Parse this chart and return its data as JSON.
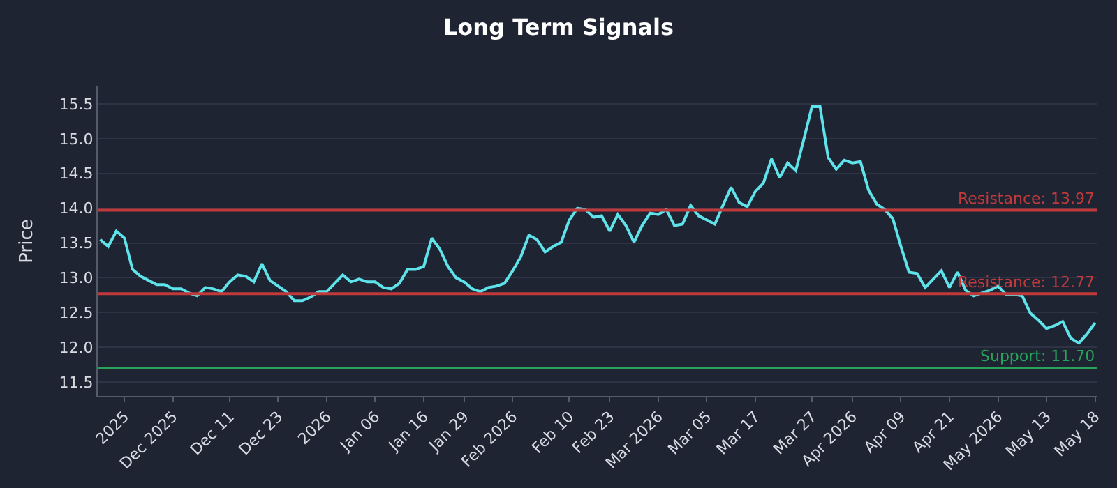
{
  "chart_data": {
    "type": "line",
    "title": "Long Term Signals",
    "ylabel": "Price",
    "categories": [
      null,
      null,
      null,
      "2025",
      null,
      null,
      null,
      null,
      null,
      "Dec 2025",
      null,
      null,
      null,
      null,
      null,
      null,
      "Dec 11",
      null,
      null,
      null,
      null,
      null,
      "Dec 23",
      null,
      null,
      null,
      null,
      null,
      "2026",
      null,
      null,
      null,
      null,
      null,
      "Jan 06",
      null,
      null,
      null,
      null,
      null,
      "Jan 16",
      null,
      null,
      null,
      null,
      "Jan 29",
      null,
      null,
      null,
      null,
      null,
      "Feb 2026",
      null,
      null,
      null,
      null,
      null,
      null,
      "Feb 10",
      null,
      null,
      null,
      null,
      "Feb 23",
      null,
      null,
      null,
      null,
      null,
      "Mar 2026",
      null,
      null,
      null,
      null,
      null,
      "Mar 05",
      null,
      null,
      null,
      null,
      null,
      "Mar 17",
      null,
      null,
      null,
      null,
      null,
      null,
      "Mar 27",
      null,
      null,
      null,
      null,
      "Apr 2026",
      null,
      null,
      null,
      null,
      null,
      "Apr 09",
      null,
      null,
      null,
      null,
      null,
      "Apr 21",
      null,
      null,
      null,
      null,
      null,
      "May 2026",
      null,
      null,
      null,
      null,
      null,
      "May 13",
      null,
      null,
      null,
      null,
      null,
      "May 18"
    ],
    "series": [
      {
        "color": "#5fe3ea",
        "values": [
          13.55,
          13.45,
          13.67,
          13.57,
          13.12,
          13.02,
          12.96,
          12.9,
          12.9,
          12.84,
          12.84,
          12.78,
          12.74,
          12.86,
          12.84,
          12.8,
          12.94,
          13.04,
          13.02,
          12.94,
          13.2,
          12.96,
          12.88,
          12.8,
          12.67,
          12.67,
          12.72,
          12.8,
          12.8,
          12.92,
          13.04,
          12.94,
          12.98,
          12.94,
          12.94,
          12.86,
          12.84,
          12.92,
          13.12,
          13.12,
          13.16,
          13.57,
          13.41,
          13.16,
          13.0,
          12.94,
          12.84,
          12.8,
          12.86,
          12.88,
          12.92,
          13.1,
          13.3,
          13.61,
          13.55,
          13.37,
          13.45,
          13.51,
          13.83,
          14.0,
          13.98,
          13.87,
          13.89,
          13.67,
          13.91,
          13.75,
          13.51,
          13.75,
          13.93,
          13.91,
          13.98,
          13.75,
          13.77,
          14.04,
          13.89,
          13.83,
          13.77,
          14.04,
          14.3,
          14.08,
          14.02,
          14.24,
          14.36,
          14.71,
          14.44,
          14.65,
          14.54,
          14.99,
          15.46,
          15.46,
          14.73,
          14.56,
          14.69,
          14.65,
          14.67,
          14.26,
          14.06,
          13.98,
          13.85,
          13.45,
          13.08,
          13.06,
          12.86,
          12.98,
          13.1,
          12.86,
          13.08,
          12.82,
          12.74,
          12.78,
          12.82,
          12.88,
          12.76,
          12.76,
          12.74,
          12.49,
          12.39,
          12.27,
          12.31,
          12.37,
          12.13,
          12.06,
          12.19,
          12.35
        ]
      }
    ],
    "ylim": [
      11.3,
      15.75
    ],
    "yticks": [
      11.5,
      {
        "value": 12,
        "label": "12.0"
      },
      12.5,
      {
        "value": 13,
        "label": "13.0"
      },
      13.5,
      {
        "value": 14,
        "label": "14.0"
      },
      14.5,
      {
        "value": 15,
        "label": "15.0"
      },
      15.5
    ],
    "ref_lines": [
      {
        "axis": "y",
        "value": 13.97,
        "label": "Resistance: 13.97",
        "color": "#c0393b"
      },
      {
        "axis": "y",
        "value": 12.77,
        "label": "Resistance: 12.77",
        "color": "#c0393b"
      },
      {
        "axis": "y",
        "value": 11.7,
        "label": "Support: 11.70",
        "color": "#27a35a"
      }
    ],
    "grid": "y",
    "marker": "none",
    "line_style": "solid"
  }
}
